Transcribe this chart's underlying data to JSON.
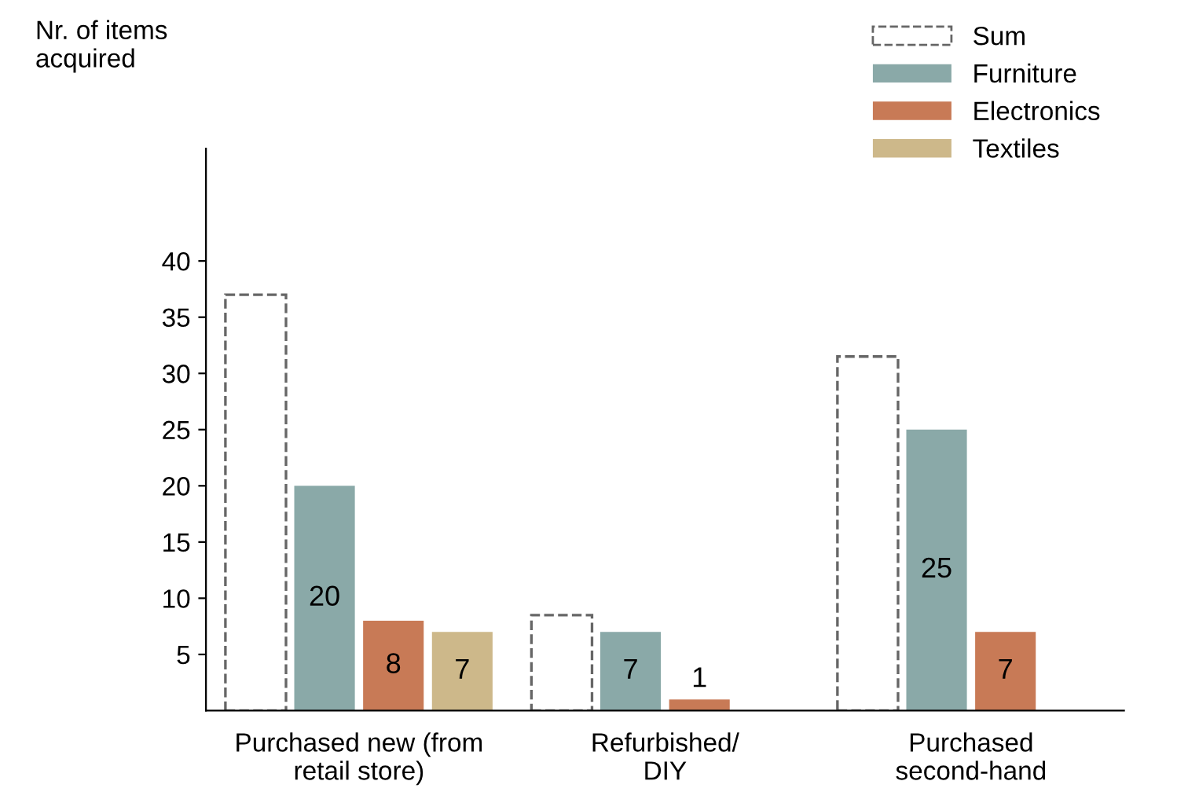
{
  "chart_data": {
    "type": "bar",
    "ylabel": "Nr. of items\nacquired",
    "categories": [
      "Purchased new (from\nretail store)",
      "Refurbished/\nDIY",
      "Purchased\nsecond-hand"
    ],
    "series": [
      {
        "name": "Sum",
        "color": "#666666",
        "line_style": "dashed",
        "values": [
          37,
          8.5,
          31.5
        ]
      },
      {
        "name": "Furniture",
        "color": "#8aa9a8",
        "values": [
          20,
          7,
          25
        ],
        "value_labels": [
          "20",
          "7",
          "25"
        ]
      },
      {
        "name": "Electronics",
        "color": "#c87a56",
        "values": [
          8,
          1,
          7
        ],
        "value_labels": [
          "8",
          "1",
          "7"
        ]
      },
      {
        "name": "Textiles",
        "color": "#cdb88a",
        "values": [
          7,
          null,
          null
        ],
        "value_labels": [
          "7",
          null,
          null
        ]
      }
    ],
    "ylim": [
      0,
      50
    ],
    "yticks": [
      5,
      10,
      15,
      20,
      25,
      30,
      35,
      40
    ],
    "grid": false,
    "legend": "top right"
  }
}
